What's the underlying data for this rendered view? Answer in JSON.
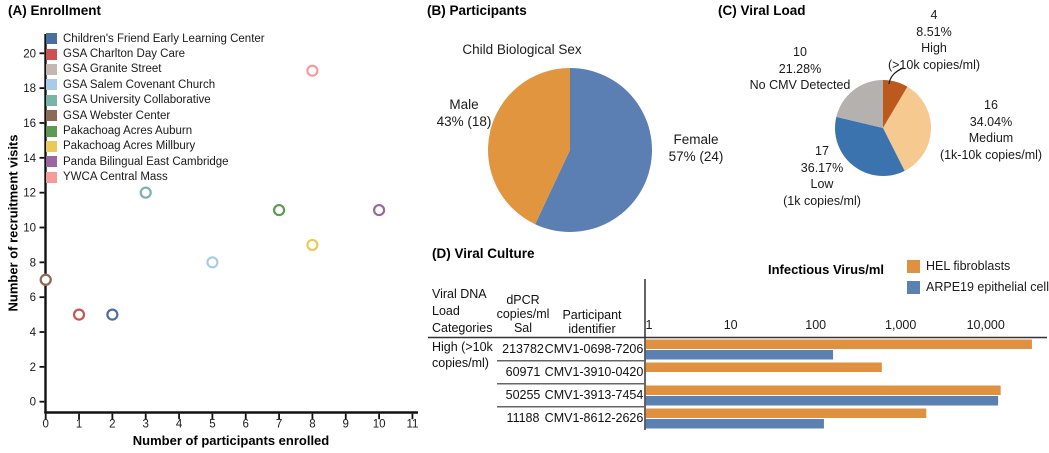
{
  "panels": {
    "a": {
      "label": "(A) Enrollment"
    },
    "b": {
      "label": "(B) Participants"
    },
    "c": {
      "label": "(C) Viral Load"
    },
    "d": {
      "label": "(D) Viral Culture"
    }
  },
  "chart_data": [
    {
      "id": "enrollment",
      "type": "scatter",
      "title": "(A) Enrollment",
      "xlabel": "Number of participants enrolled",
      "ylabel": "Number of recruitment visits",
      "xlim": [
        0,
        11
      ],
      "ylim": [
        0,
        21
      ],
      "xticks": [
        0,
        1,
        2,
        3,
        4,
        5,
        6,
        7,
        8,
        9,
        10,
        11
      ],
      "yticks": [
        0,
        2,
        4,
        6,
        8,
        10,
        12,
        14,
        16,
        18,
        20
      ],
      "legend_position": "upper-left",
      "marker": "open-circle",
      "series": [
        {
          "name": "Children's Friend Early Learning Center",
          "color": "#4a6f9e",
          "points": [
            [
              2,
              5
            ]
          ]
        },
        {
          "name": "GSA Charlton Day Care",
          "color": "#cb5251",
          "points": [
            [
              1,
              5
            ]
          ]
        },
        {
          "name": "GSA Granite Street",
          "color": "#c4b7b1",
          "points": [
            [
              0,
              7
            ]
          ]
        },
        {
          "name": "GSA Salem Covenant Church",
          "color": "#a9cbe8",
          "points": [
            [
              5,
              8
            ]
          ]
        },
        {
          "name": "GSA University Collaborative",
          "color": "#79b3a9",
          "points": [
            [
              3,
              12
            ]
          ]
        },
        {
          "name": "GSA Webster Center",
          "color": "#8d6a55",
          "points": [
            [
              0,
              7
            ]
          ]
        },
        {
          "name": "Pakachoag Acres Auburn",
          "color": "#5b9b53",
          "points": [
            [
              7,
              11
            ]
          ]
        },
        {
          "name": "Pakachoag Acres Millbury",
          "color": "#e8ca58",
          "points": [
            [
              8,
              9
            ]
          ]
        },
        {
          "name": "Panda Bilingual East Cambridge",
          "color": "#9a68a0",
          "points": [
            [
              10,
              11
            ]
          ]
        },
        {
          "name": "YWCA Central Mass",
          "color": "#f49b9c",
          "points": [
            [
              8,
              19
            ]
          ]
        }
      ]
    },
    {
      "id": "participants_sex",
      "type": "pie",
      "title": "Child Biological Sex",
      "start": "top",
      "direction": "clockwise",
      "slices": [
        {
          "label": "Female",
          "percent": 57,
          "count": 24,
          "percent_text": "57% (24)",
          "color": "#5b7fb2"
        },
        {
          "label": "Male",
          "percent": 43,
          "count": 18,
          "percent_text": "43% (18)",
          "color": "#e2953f"
        }
      ]
    },
    {
      "id": "viral_load",
      "type": "pie",
      "start": "top",
      "direction": "clockwise",
      "slices": [
        {
          "label": "High (>10k copies/ml)",
          "count": 4,
          "percent": 8.51,
          "color": "#bc5a1e",
          "label_lines": [
            "4",
            "8.51%",
            "High",
            "(>10k copies/ml)"
          ]
        },
        {
          "label": "Medium (1k-10k copies/ml)",
          "count": 16,
          "percent": 34.04,
          "color": "#f5c98f",
          "label_lines": [
            "16",
            "34.04%",
            "Medium",
            "(1k-10k copies/ml)"
          ]
        },
        {
          "label": "Low (1k copies/ml)",
          "count": 17,
          "percent": 36.17,
          "color": "#3a73ae",
          "label_lines": [
            "17",
            "36.17%",
            "Low",
            "(1k copies/ml)"
          ]
        },
        {
          "label": "No CMV Detected",
          "count": 10,
          "percent": 21.28,
          "color": "#b5b1ae",
          "label_lines": [
            "10",
            "21.28%",
            "No CMV Detected"
          ]
        }
      ]
    },
    {
      "id": "viral_culture",
      "type": "bar",
      "orientation": "horizontal",
      "title": "Infectious Virus/ml",
      "x_scale": "log10",
      "xtick_values": [
        1,
        10,
        100,
        1000,
        10000
      ],
      "xtick_labels": [
        "1",
        "10",
        "100",
        "1,000",
        "10,000"
      ],
      "legend": [
        {
          "name": "HEL fibroblasts",
          "color": "#e0913f"
        },
        {
          "name": "ARPE19 epithelial cells",
          "color": "#5b80b2"
        }
      ],
      "table_headers": [
        [
          "Viral DNA",
          "Load",
          "Categories"
        ],
        [
          "dPCR",
          "copies/ml",
          "Sal"
        ],
        [
          "Participant",
          "identifier"
        ]
      ],
      "rows": [
        {
          "category_lines": [
            "High (>10k",
            "copies/ml)"
          ],
          "dpcr_copies_ml_sal": "213782",
          "participant_id": "CMV1-0698-7206",
          "hel_fibroblasts": 35000,
          "arpe19_epithelial": 160
        },
        {
          "category_lines": [],
          "dpcr_copies_ml_sal": "60971",
          "participant_id": "CMV1-3910-0420",
          "hel_fibroblasts": 600,
          "arpe19_epithelial": null
        },
        {
          "category_lines": [],
          "dpcr_copies_ml_sal": "50255",
          "participant_id": "CMV1-3913-7454",
          "hel_fibroblasts": 15000,
          "arpe19_epithelial": 14000
        },
        {
          "category_lines": [],
          "dpcr_copies_ml_sal": "11188",
          "participant_id": "CMV1-8612-2626",
          "hel_fibroblasts": 2000,
          "arpe19_epithelial": 125
        }
      ]
    }
  ]
}
